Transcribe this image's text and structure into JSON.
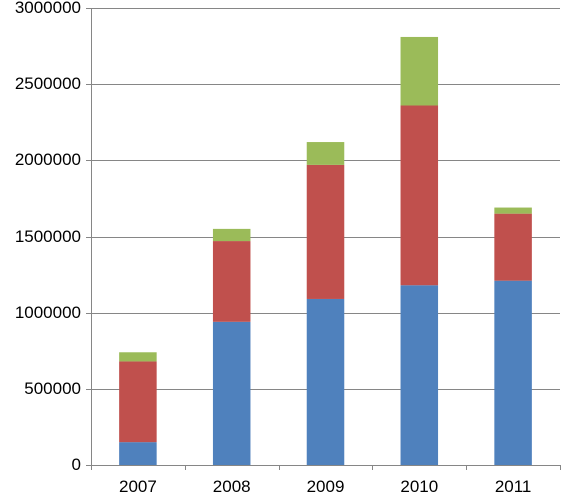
{
  "chart_data": {
    "type": "bar",
    "stacked": true,
    "categories": [
      "2007",
      "2008",
      "2009",
      "2010",
      "2011"
    ],
    "series": [
      {
        "color": "#4f81bd",
        "values": [
          150000,
          940000,
          1090000,
          1180000,
          1210000
        ]
      },
      {
        "color": "#c0504d",
        "values": [
          530000,
          530000,
          880000,
          1180000,
          440000
        ]
      },
      {
        "color": "#9bbb59",
        "values": [
          60000,
          80000,
          150000,
          450000,
          40000
        ]
      }
    ],
    "title": "",
    "xlabel": "",
    "ylabel": "",
    "ylim": [
      0,
      3000000
    ],
    "y_ticks": [
      "0",
      "500000",
      "1000000",
      "1500000",
      "2000000",
      "2500000",
      "3000000"
    ],
    "grid": true,
    "legend": "none"
  }
}
